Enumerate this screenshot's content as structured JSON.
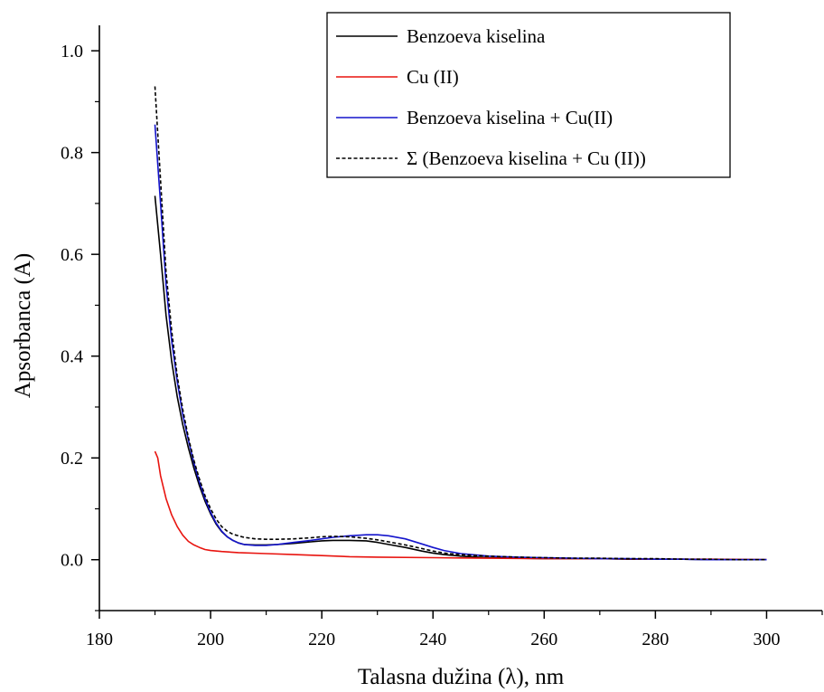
{
  "chart_data": {
    "type": "line",
    "xlabel": "Talasna dužina (λ), nm",
    "ylabel": "Apsorbanca (A)",
    "xlim": [
      180,
      310
    ],
    "ylim": [
      -0.1,
      1.05
    ],
    "x_ticks": [
      180,
      200,
      220,
      240,
      260,
      280,
      300
    ],
    "x_tick_labels": [
      "180",
      "200",
      "220",
      "240",
      "260",
      "280",
      "300"
    ],
    "y_ticks": [
      0.0,
      0.2,
      0.4,
      0.6,
      0.8,
      1.0
    ],
    "y_tick_labels": [
      "0.0",
      "0.2",
      "0.4",
      "0.6",
      "0.8",
      "1.0"
    ],
    "grid": false,
    "legend_position": "top-right",
    "series": [
      {
        "name": "Benzoeva kiselina",
        "color": "#000000",
        "dash": "solid",
        "x": [
          190,
          191,
          192,
          193,
          194,
          195,
          196,
          197,
          198,
          199,
          200,
          201,
          202,
          203,
          204,
          205,
          206,
          208,
          210,
          212,
          215,
          218,
          220,
          222,
          225,
          228,
          230,
          232,
          235,
          238,
          240,
          242,
          245,
          248,
          250,
          255,
          260,
          265,
          270,
          275,
          280,
          285,
          290,
          295,
          300
        ],
        "y": [
          0.715,
          0.6,
          0.48,
          0.39,
          0.32,
          0.265,
          0.22,
          0.18,
          0.145,
          0.115,
          0.09,
          0.07,
          0.055,
          0.045,
          0.038,
          0.033,
          0.03,
          0.029,
          0.029,
          0.03,
          0.032,
          0.035,
          0.037,
          0.038,
          0.038,
          0.037,
          0.034,
          0.03,
          0.024,
          0.017,
          0.013,
          0.01,
          0.007,
          0.005,
          0.004,
          0.003,
          0.002,
          0.002,
          0.002,
          0.001,
          0.001,
          0.001,
          0.0,
          0.0,
          0.0
        ]
      },
      {
        "name": "Cu (II)",
        "color": "#e8140f",
        "dash": "solid",
        "x": [
          190,
          190.5,
          191,
          192,
          193,
          194,
          195,
          196,
          197,
          198,
          199,
          200,
          202,
          205,
          210,
          215,
          220,
          225,
          230,
          240,
          250,
          260,
          270,
          280,
          290,
          300
        ],
        "y": [
          0.213,
          0.2,
          0.165,
          0.12,
          0.088,
          0.065,
          0.048,
          0.036,
          0.029,
          0.024,
          0.02,
          0.018,
          0.016,
          0.014,
          0.012,
          0.01,
          0.008,
          0.006,
          0.005,
          0.004,
          0.003,
          0.002,
          0.002,
          0.001,
          0.001,
          0.0
        ]
      },
      {
        "name": "Benzoeva kiselina + Cu(II)",
        "color": "#1414cc",
        "dash": "solid",
        "x": [
          190,
          191,
          192,
          193,
          194,
          195,
          196,
          197,
          198,
          199,
          200,
          201,
          202,
          203,
          204,
          205,
          206,
          208,
          210,
          212,
          215,
          218,
          220,
          222,
          225,
          228,
          230,
          232,
          235,
          238,
          240,
          242,
          245,
          248,
          250,
          255,
          260,
          265,
          270,
          275,
          280,
          285,
          290,
          295,
          300
        ],
        "y": [
          0.855,
          0.7,
          0.54,
          0.43,
          0.35,
          0.285,
          0.235,
          0.19,
          0.152,
          0.12,
          0.093,
          0.072,
          0.056,
          0.045,
          0.038,
          0.033,
          0.03,
          0.028,
          0.028,
          0.03,
          0.034,
          0.038,
          0.041,
          0.044,
          0.047,
          0.049,
          0.049,
          0.047,
          0.041,
          0.031,
          0.024,
          0.018,
          0.012,
          0.009,
          0.007,
          0.005,
          0.004,
          0.003,
          0.002,
          0.002,
          0.001,
          0.001,
          0.0,
          0.0,
          0.0
        ]
      },
      {
        "name": "Σ (Benzoeva kiselina + Cu (II))",
        "color": "#000000",
        "dash": "dashed",
        "x": [
          190,
          191,
          192,
          193,
          194,
          195,
          196,
          197,
          198,
          199,
          200,
          201,
          202,
          203,
          204,
          205,
          206,
          208,
          210,
          212,
          215,
          218,
          220,
          222,
          225,
          228,
          230,
          232,
          235,
          238,
          240,
          242,
          245,
          248,
          250,
          255,
          260,
          265,
          270,
          275,
          280,
          285,
          290,
          295,
          300
        ],
        "y": [
          0.93,
          0.745,
          0.565,
          0.45,
          0.36,
          0.295,
          0.24,
          0.195,
          0.158,
          0.126,
          0.1,
          0.08,
          0.065,
          0.056,
          0.05,
          0.047,
          0.044,
          0.041,
          0.04,
          0.04,
          0.041,
          0.043,
          0.045,
          0.046,
          0.045,
          0.042,
          0.039,
          0.035,
          0.029,
          0.022,
          0.017,
          0.013,
          0.01,
          0.008,
          0.007,
          0.005,
          0.004,
          0.003,
          0.003,
          0.002,
          0.002,
          0.001,
          0.001,
          0.0,
          0.0
        ]
      }
    ]
  }
}
